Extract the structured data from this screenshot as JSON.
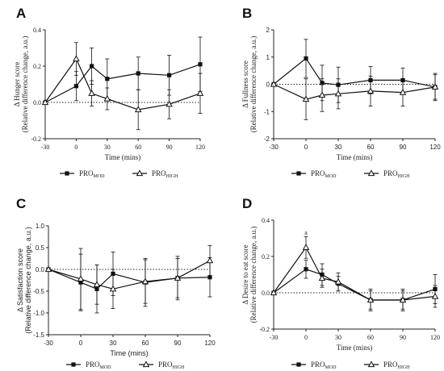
{
  "chart_data": [
    {
      "panel": "A",
      "type": "line",
      "ylabel": "Δ Hunger score",
      "ylabel_sub": "(Relative difference change, a.u.)",
      "xlabel": "Time (mins)",
      "xlim": [
        -30,
        120
      ],
      "ylim": [
        -0.2,
        0.4
      ],
      "xticks": [
        -30,
        0,
        30,
        60,
        90,
        120
      ],
      "yticks": [
        "-0.2",
        "0.0",
        "0.2",
        "0.4"
      ],
      "series": [
        {
          "name": "PRO",
          "sub": "MOD",
          "marker": "square",
          "x": [
            -30,
            0,
            15,
            30,
            60,
            90,
            120
          ],
          "y": [
            0.0,
            0.09,
            0.2,
            0.13,
            0.16,
            0.15,
            0.21
          ],
          "err": [
            0.0,
            0.08,
            0.1,
            0.11,
            0.09,
            0.11,
            0.15
          ]
        },
        {
          "name": "PRO",
          "sub": "HIGH",
          "marker": "triangle",
          "x": [
            -30,
            0,
            15,
            30,
            60,
            90,
            120
          ],
          "y": [
            0.0,
            0.24,
            0.05,
            0.02,
            -0.04,
            -0.01,
            0.05
          ],
          "err": [
            0.0,
            0.09,
            0.07,
            0.06,
            0.11,
            0.08,
            0.11
          ]
        }
      ],
      "annotations": []
    },
    {
      "panel": "B",
      "type": "line",
      "ylabel": "Δ Fullness score",
      "ylabel_sub": "(Relative difference change, a.u.)",
      "xlabel": "Time (mins)",
      "xlim": [
        -30,
        120
      ],
      "ylim": [
        -2,
        2
      ],
      "xticks": [
        -30,
        0,
        30,
        60,
        90,
        120
      ],
      "yticks": [
        "-2",
        "-1",
        "0",
        "1",
        "2"
      ],
      "series": [
        {
          "name": "PRO",
          "sub": "MOD",
          "marker": "square",
          "x": [
            -30,
            0,
            15,
            30,
            60,
            90,
            120
          ],
          "y": [
            0.0,
            0.95,
            0.05,
            -0.02,
            0.15,
            0.15,
            -0.1
          ],
          "err": [
            0.0,
            0.7,
            0.65,
            0.65,
            0.5,
            0.45,
            0.45
          ]
        },
        {
          "name": "PRO",
          "sub": "HIGH",
          "marker": "triangle",
          "x": [
            -30,
            0,
            15,
            30,
            60,
            90,
            120
          ],
          "y": [
            0.0,
            -0.55,
            -0.4,
            -0.35,
            -0.25,
            -0.3,
            -0.1
          ],
          "err": [
            0.0,
            0.75,
            0.6,
            0.55,
            0.55,
            0.5,
            0.5
          ]
        }
      ],
      "annotations": []
    },
    {
      "panel": "C",
      "type": "line",
      "ylabel": "Δ Satisfaction score",
      "ylabel_sub": "(Relative difference change, a.u.)",
      "xlabel": "Time (mins)",
      "xlim": [
        -30,
        120
      ],
      "ylim": [
        -1.5,
        1.0
      ],
      "xticks": [
        -30,
        0,
        30,
        60,
        90,
        120
      ],
      "yticks": [
        "-1.5",
        "-1.0",
        "-0.5",
        "0.0",
        "0.5",
        "1.0"
      ],
      "series": [
        {
          "name": "PRO",
          "sub": "MOD",
          "marker": "square",
          "x": [
            -30,
            0,
            15,
            30,
            60,
            90,
            120
          ],
          "y": [
            0.0,
            -0.3,
            -0.45,
            -0.1,
            -0.3,
            -0.2,
            -0.18
          ],
          "err": [
            0.0,
            0.65,
            0.55,
            0.5,
            0.55,
            0.45,
            0.45
          ]
        },
        {
          "name": "PRO",
          "sub": "HIGH",
          "marker": "triangle",
          "x": [
            -30,
            0,
            15,
            30,
            60,
            90,
            120
          ],
          "y": [
            0.0,
            -0.22,
            -0.35,
            -0.45,
            -0.28,
            -0.2,
            0.2
          ],
          "err": [
            0.0,
            0.7,
            0.45,
            0.45,
            0.5,
            0.5,
            0.35
          ]
        }
      ],
      "annotations": []
    },
    {
      "panel": "D",
      "type": "line",
      "ylabel": "Δ Desire to eat score",
      "ylabel_sub": "(Relative difference change, a.u.)",
      "xlabel": "Time (mins)",
      "xlim": [
        -30,
        120
      ],
      "ylim": [
        -0.2,
        0.4
      ],
      "xticks": [
        -30,
        0,
        30,
        60,
        90,
        120
      ],
      "yticks": [
        "-0.2",
        "0.0",
        "0.2",
        "0.4"
      ],
      "series": [
        {
          "name": "PRO",
          "sub": "MOD",
          "marker": "square",
          "x": [
            -30,
            0,
            15,
            30,
            60,
            90,
            120
          ],
          "y": [
            0.0,
            0.13,
            0.1,
            0.05,
            -0.04,
            -0.04,
            0.02
          ],
          "err": [
            0.0,
            0.05,
            0.06,
            0.04,
            0.06,
            0.06,
            0.08
          ]
        },
        {
          "name": "PRO",
          "sub": "HIGH",
          "marker": "triangle",
          "x": [
            -30,
            0,
            15,
            30,
            60,
            90,
            120
          ],
          "y": [
            0.0,
            0.25,
            0.08,
            0.06,
            -0.04,
            -0.04,
            -0.02
          ],
          "err": [
            0.0,
            0.06,
            0.05,
            0.05,
            0.05,
            0.05,
            0.06
          ]
        }
      ],
      "annotations": [
        {
          "text": "a",
          "x": 0,
          "y": 0.32
        }
      ]
    }
  ]
}
